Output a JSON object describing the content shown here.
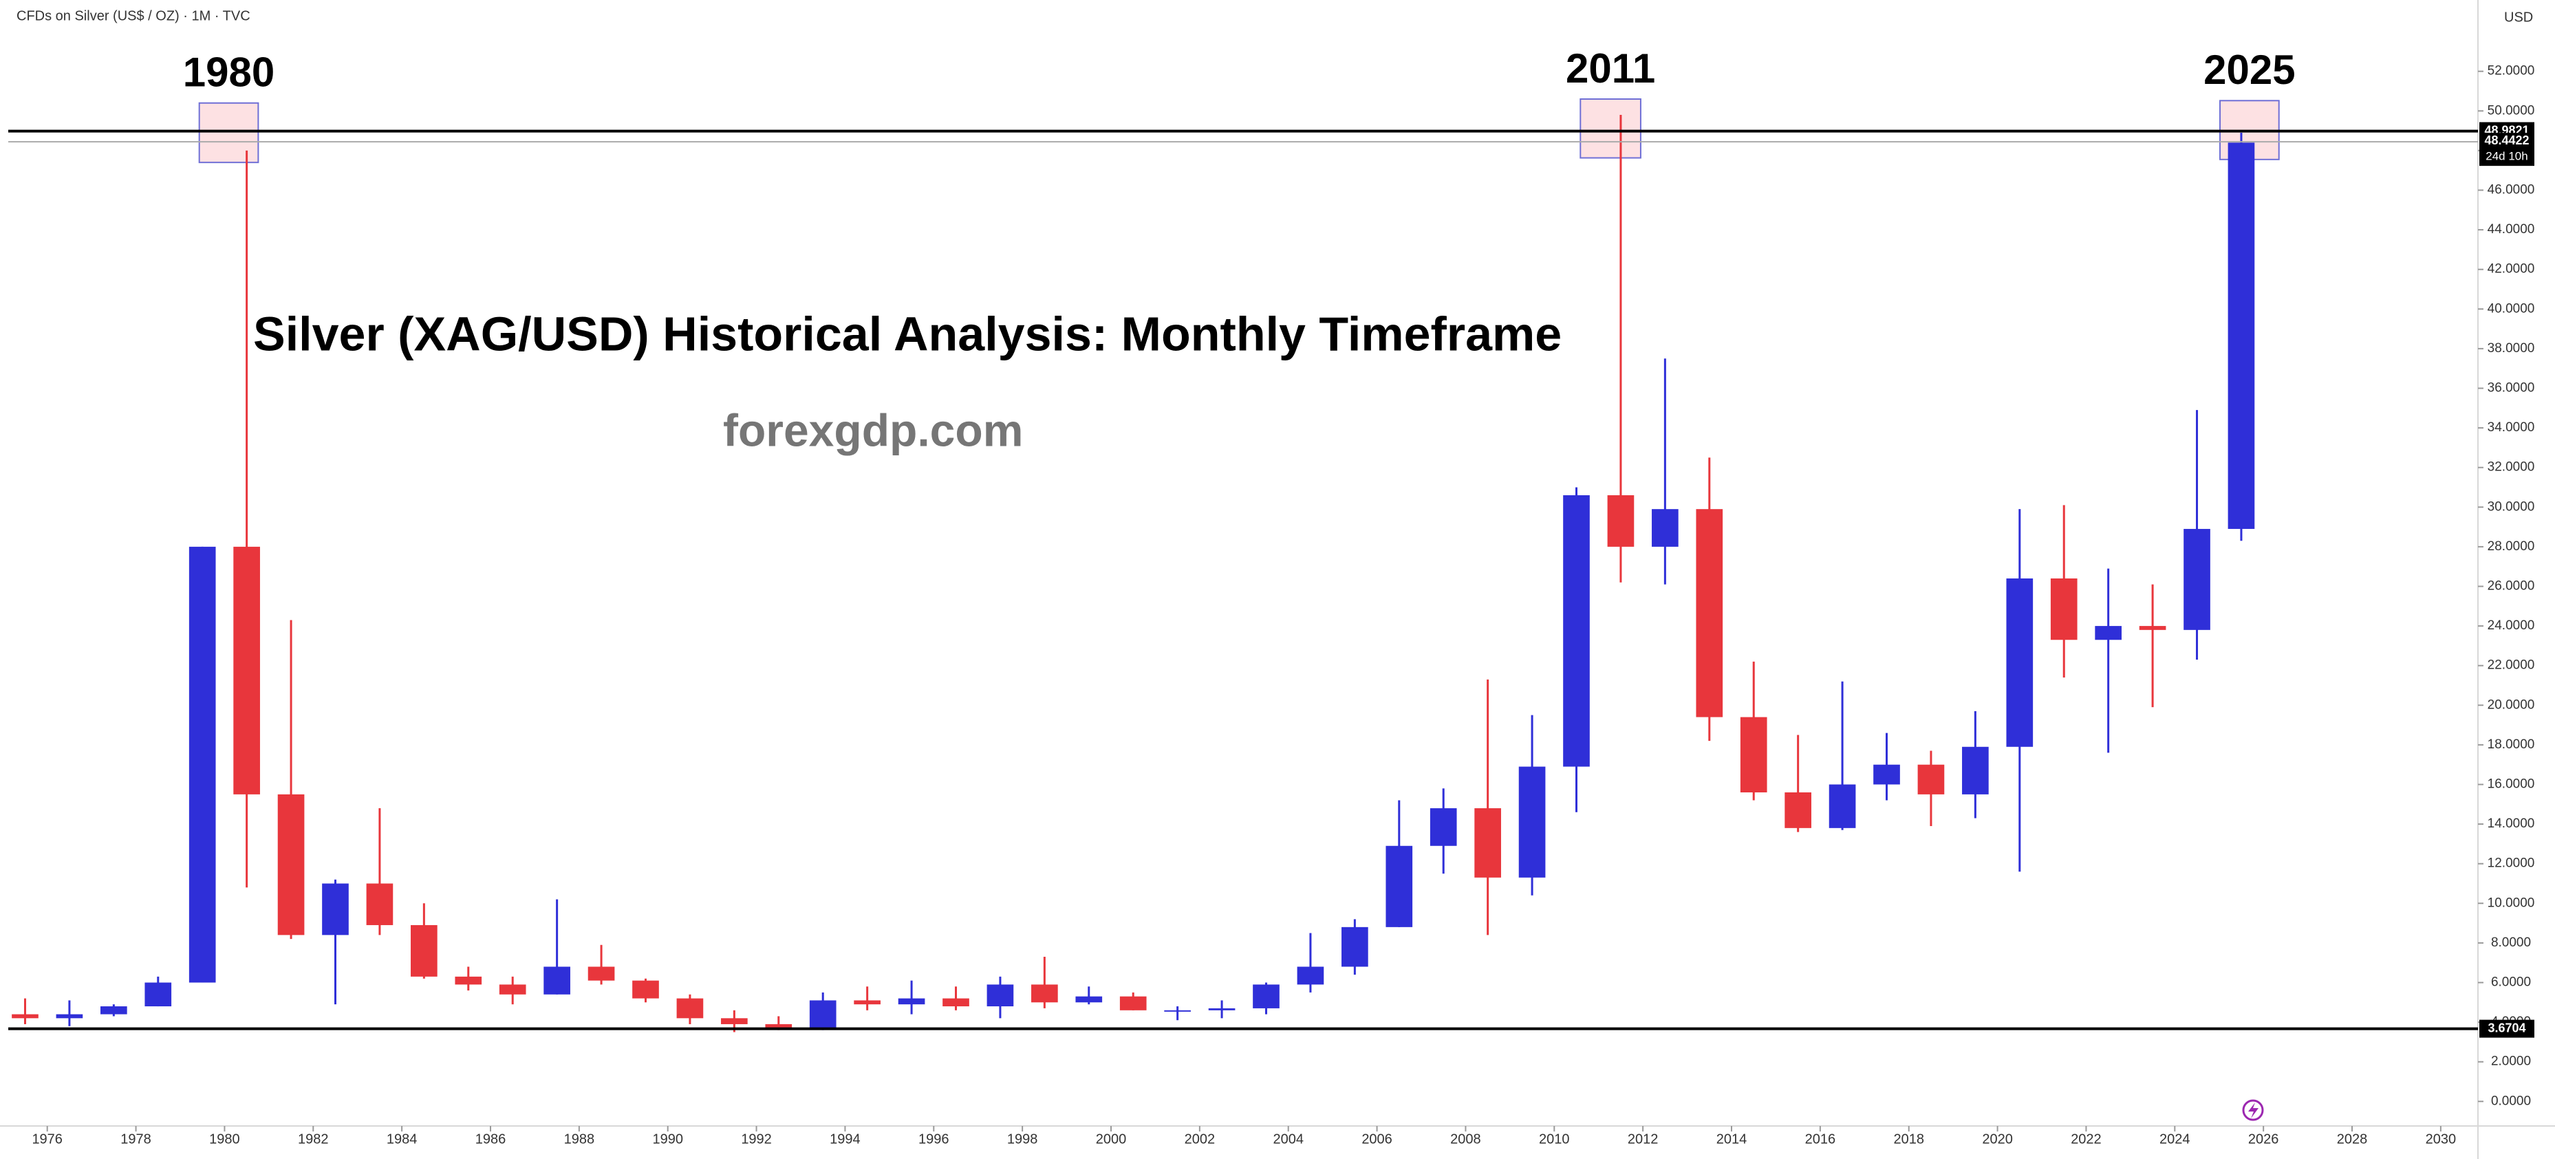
{
  "header": {
    "symbol": "CFDs on Silver (US$ / OZ) · 1M · TVC",
    "currency": "USD"
  },
  "chart_data": {
    "type": "candlestick",
    "title": "Silver (XAG/USD) Historical Analysis: Monthly Timeframe",
    "subtitle": "forexgdp.com",
    "xlim": [
      1975.12,
      2030.84
    ],
    "xticks": [
      1976,
      1978,
      1980,
      1982,
      1984,
      1986,
      1988,
      1990,
      1992,
      1994,
      1996,
      1998,
      2000,
      2002,
      2004,
      2006,
      2008,
      2010,
      2012,
      2014,
      2016,
      2018,
      2020,
      2022,
      2024,
      2026,
      2028,
      2030
    ],
    "ylim": [
      -1.24,
      55.6
    ],
    "yticks": [
      {
        "value": 0,
        "label": "0.0000"
      },
      {
        "value": 2,
        "label": "2.0000"
      },
      {
        "value": 4,
        "label": "4.0000"
      },
      {
        "value": 6,
        "label": "6.0000"
      },
      {
        "value": 8,
        "label": "8.0000"
      },
      {
        "value": 10,
        "label": "10.0000"
      },
      {
        "value": 12,
        "label": "12.0000"
      },
      {
        "value": 14,
        "label": "14.0000"
      },
      {
        "value": 16,
        "label": "16.0000"
      },
      {
        "value": 18,
        "label": "18.0000"
      },
      {
        "value": 20,
        "label": "20.0000"
      },
      {
        "value": 22,
        "label": "22.0000"
      },
      {
        "value": 24,
        "label": "24.0000"
      },
      {
        "value": 26,
        "label": "26.0000"
      },
      {
        "value": 28,
        "label": "28.0000"
      },
      {
        "value": 30,
        "label": "30.0000"
      },
      {
        "value": 32,
        "label": "32.0000"
      },
      {
        "value": 34,
        "label": "34.0000"
      },
      {
        "value": 36,
        "label": "36.0000"
      },
      {
        "value": 38,
        "label": "38.0000"
      },
      {
        "value": 40,
        "label": "40.0000"
      },
      {
        "value": 42,
        "label": "42.0000"
      },
      {
        "value": 44,
        "label": "44.0000"
      },
      {
        "value": 46,
        "label": "46.0000"
      },
      {
        "value": 48,
        "label": "48.0000"
      },
      {
        "value": 50,
        "label": "50.0000"
      },
      {
        "value": 52,
        "label": "52.0000"
      }
    ],
    "grid": false,
    "up_color": "#2f2fd8",
    "down_color": "#e8363c",
    "x": [
      1975,
      1976,
      1977,
      1978,
      1979,
      1980,
      1981,
      1982,
      1983,
      1984,
      1985,
      1986,
      1987,
      1988,
      1989,
      1990,
      1991,
      1992,
      1993,
      1994,
      1995,
      1996,
      1997,
      1998,
      1999,
      2000,
      2001,
      2002,
      2003,
      2004,
      2005,
      2006,
      2007,
      2008,
      2009,
      2010,
      2011,
      2012,
      2013,
      2014,
      2015,
      2016,
      2017,
      2018,
      2019,
      2020,
      2021,
      2022,
      2023,
      2024,
      2025
    ],
    "open": [
      4.4,
      4.2,
      4.4,
      4.8,
      6.0,
      28.0,
      15.5,
      8.4,
      11.0,
      8.9,
      6.3,
      5.9,
      5.4,
      6.8,
      6.1,
      5.2,
      4.2,
      3.9,
      3.7,
      5.1,
      4.9,
      5.2,
      4.8,
      5.9,
      5.0,
      5.3,
      4.6,
      4.6,
      4.7,
      5.9,
      6.8,
      8.8,
      12.9,
      14.8,
      11.3,
      16.9,
      30.6,
      28.0,
      29.9,
      19.4,
      15.6,
      13.8,
      16.0,
      17.0,
      15.5,
      17.9,
      26.4,
      23.3,
      24.0,
      23.8,
      28.9
    ],
    "high": [
      5.2,
      5.1,
      4.9,
      6.3,
      28.0,
      48.0,
      24.3,
      11.2,
      14.8,
      10.0,
      6.8,
      6.3,
      10.2,
      7.9,
      6.2,
      5.4,
      4.6,
      4.3,
      5.5,
      5.8,
      6.1,
      5.8,
      6.3,
      7.3,
      5.8,
      5.5,
      4.8,
      5.1,
      6.0,
      8.5,
      9.2,
      15.2,
      15.8,
      21.3,
      19.5,
      31.0,
      49.8,
      37.5,
      32.5,
      22.2,
      18.5,
      21.2,
      18.6,
      17.7,
      19.7,
      29.9,
      30.1,
      26.9,
      26.1,
      34.9,
      48.9
    ],
    "low": [
      3.9,
      3.8,
      4.3,
      4.8,
      6.0,
      10.8,
      8.2,
      4.9,
      8.4,
      6.2,
      5.6,
      4.9,
      5.4,
      5.9,
      5.0,
      3.9,
      3.5,
      3.6,
      3.6,
      4.6,
      4.4,
      4.6,
      4.2,
      4.7,
      4.9,
      4.6,
      4.1,
      4.2,
      4.4,
      5.5,
      6.4,
      8.8,
      11.5,
      8.4,
      10.4,
      14.6,
      26.2,
      26.1,
      18.2,
      15.2,
      13.6,
      13.7,
      15.2,
      13.9,
      14.3,
      11.6,
      21.4,
      17.6,
      19.9,
      22.3,
      28.3
    ],
    "close": [
      4.2,
      4.4,
      4.8,
      6.0,
      28.0,
      15.5,
      8.4,
      11.0,
      8.9,
      6.3,
      5.9,
      5.4,
      6.8,
      6.1,
      5.2,
      4.2,
      3.9,
      3.7,
      5.1,
      4.9,
      5.2,
      4.8,
      5.9,
      5.0,
      5.3,
      4.6,
      4.6,
      4.7,
      5.9,
      6.8,
      8.8,
      12.9,
      14.8,
      11.3,
      16.9,
      30.6,
      28.0,
      29.9,
      19.4,
      15.6,
      13.8,
      16.0,
      17.0,
      15.5,
      17.9,
      26.4,
      23.3,
      24.0,
      23.8,
      28.9,
      48.4
    ],
    "hlines": [
      48.9821,
      3.6704
    ],
    "price_line": 48.4422,
    "countdown": "24d 10h",
    "annotations": [
      {
        "label": "1980",
        "xbox": [
          1979.43,
          1980.76
        ],
        "ybox": [
          47.4,
          50.4
        ]
      },
      {
        "label": "2011",
        "xbox": [
          2010.59,
          2011.95
        ],
        "ybox": [
          47.63,
          50.6
        ]
      },
      {
        "label": "2025",
        "xbox": [
          2025.02,
          2026.35
        ],
        "ybox": [
          47.55,
          50.52
        ]
      }
    ]
  }
}
